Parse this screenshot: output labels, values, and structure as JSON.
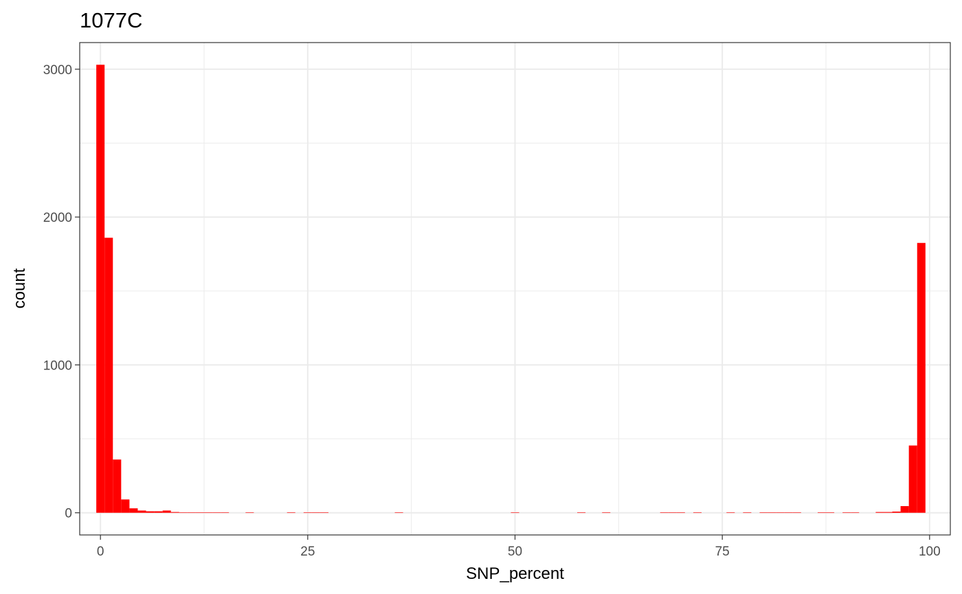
{
  "chart_data": {
    "type": "bar",
    "subtype": "histogram",
    "title": "1077C",
    "xlabel": "SNP_percent",
    "ylabel": "count",
    "xlim": [
      -2.5,
      102.5
    ],
    "ylim": [
      -150,
      3180
    ],
    "x_ticks": [
      0,
      25,
      50,
      75,
      100
    ],
    "x_tick_labels": [
      "0",
      "25",
      "50",
      "75",
      "100"
    ],
    "y_ticks": [
      0,
      1000,
      2000,
      3000
    ],
    "y_tick_labels": [
      "0",
      "1000",
      "2000",
      "3000"
    ],
    "bin_width": 1,
    "bins_start": [
      -0.5,
      0.5,
      1.5,
      2.5,
      3.5,
      4.5,
      5.5,
      6.5,
      7.5,
      8.5,
      9.5,
      10.5,
      11.5,
      12.5,
      13.5,
      14.5,
      17.5,
      22.5,
      24.5,
      25.5,
      26.5,
      35.5,
      49.5,
      57.5,
      60.5,
      67.5,
      68.5,
      69.5,
      71.5,
      75.5,
      77.5,
      79.5,
      80.5,
      81.5,
      82.5,
      83.5,
      86.5,
      87.5,
      89.5,
      90.5,
      93.5,
      94.5,
      95.5,
      96.5,
      97.5,
      98.5
    ],
    "values": [
      3030,
      1860,
      360,
      90,
      30,
      15,
      10,
      10,
      15,
      5,
      3,
      3,
      3,
      3,
      3,
      3,
      3,
      3,
      3,
      3,
      3,
      3,
      3,
      3,
      3,
      3,
      3,
      3,
      3,
      3,
      3,
      3,
      3,
      3,
      3,
      3,
      3,
      3,
      3,
      3,
      5,
      5,
      8,
      45,
      455,
      1825
    ],
    "bar_color": "#ff0000",
    "grid": true,
    "legend": "none"
  }
}
